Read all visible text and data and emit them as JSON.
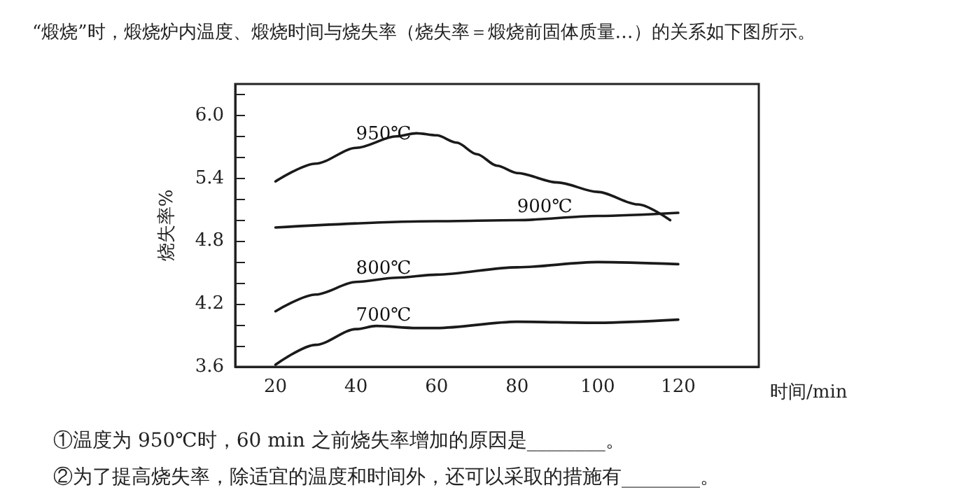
{
  "chart_data": {
    "type": "line",
    "title": "“煅烧”时，煅烧炉内温度、煅烧时间与烧失率（烧失率＝煅烧前固体质量…）的关系如下图所示。",
    "xlabel": "时间/min",
    "ylabel": "烧失率%",
    "xlim": [
      10,
      140
    ],
    "xticks": [
      20,
      40,
      60,
      80,
      100,
      120
    ],
    "ylim": [
      3.6,
      6.3
    ],
    "yticks": [
      {
        "value": 3.6,
        "label": "3.6"
      },
      {
        "value": 3.8,
        "label": null
      },
      {
        "value": 4.0,
        "label": null
      },
      {
        "value": 4.2,
        "label": "4.2"
      },
      {
        "value": 4.4,
        "label": null
      },
      {
        "value": 4.6,
        "label": null
      },
      {
        "value": 4.8,
        "label": "4.8"
      },
      {
        "value": 5.0,
        "label": null
      },
      {
        "value": 5.2,
        "label": null
      },
      {
        "value": 5.4,
        "label": "5.4"
      },
      {
        "value": 5.6,
        "label": null
      },
      {
        "value": 5.8,
        "label": null
      },
      {
        "value": 6.0,
        "label": "6.0"
      },
      {
        "value": 6.2,
        "label": null
      }
    ],
    "grid": false,
    "legend": false,
    "marker": "none",
    "line_style": "solid",
    "series": [
      {
        "name": "950℃",
        "color": "#1a1a1a",
        "x": [
          20,
          30,
          40,
          50,
          55,
          60,
          65,
          70,
          75,
          80,
          90,
          100,
          110,
          118
        ],
        "values": [
          5.37,
          5.54,
          5.69,
          5.8,
          5.83,
          5.81,
          5.74,
          5.63,
          5.52,
          5.45,
          5.36,
          5.27,
          5.15,
          5.0
        ]
      },
      {
        "name": "900℃",
        "color": "#1a1a1a",
        "x": [
          20,
          60,
          80,
          100,
          120
        ],
        "values": [
          4.93,
          4.99,
          5.0,
          5.04,
          5.07
        ]
      },
      {
        "name": "800℃",
        "color": "#1a1a1a",
        "x": [
          20,
          30,
          40,
          50,
          60,
          80,
          100,
          120
        ],
        "values": [
          4.13,
          4.29,
          4.41,
          4.45,
          4.48,
          4.55,
          4.6,
          4.58
        ]
      },
      {
        "name": "700℃",
        "color": "#1a1a1a",
        "x": [
          20,
          30,
          40,
          45,
          55,
          60,
          80,
          100,
          120
        ],
        "values": [
          3.62,
          3.81,
          3.96,
          3.99,
          3.97,
          3.97,
          4.03,
          4.02,
          4.05
        ]
      }
    ],
    "annotations": [
      "①温度为 950℃时，60 min 之前烧失率增加的原因是________。",
      "②为了提高烧失率，除适宜的温度和时间外，还可以采取的措施有________。"
    ]
  }
}
